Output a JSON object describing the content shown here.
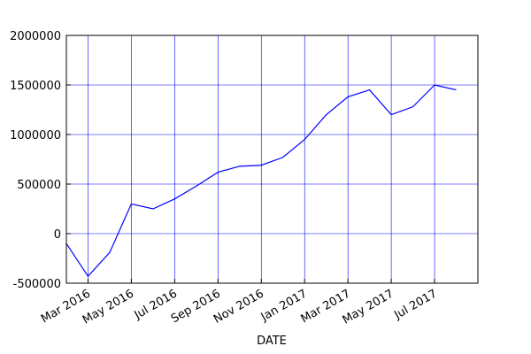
{
  "chart_data": {
    "type": "line",
    "x_label": "DATE",
    "x": [
      "2016-02",
      "2016-03",
      "2016-04",
      "2016-05",
      "2016-06",
      "2016-07",
      "2016-08",
      "2016-09",
      "2016-10",
      "2016-11",
      "2016-12",
      "2017-01",
      "2017-02",
      "2017-03",
      "2017-04",
      "2017-05",
      "2017-06",
      "2017-07",
      "2017-08"
    ],
    "series": [
      {
        "color": "#0000ff",
        "values": [
          -100000,
          -430000,
          -190000,
          300000,
          250000,
          350000,
          480000,
          620000,
          680000,
          690000,
          770000,
          950000,
          1200000,
          1380000,
          1450000,
          1200000,
          1280000,
          1500000,
          1450000
        ]
      }
    ],
    "xlim": [
      "2016-02",
      "2017-09"
    ],
    "xticks": [
      {
        "value": "2016-03",
        "label": "Mar 2016"
      },
      {
        "value": "2016-05",
        "label": "May 2016"
      },
      {
        "value": "2016-07",
        "label": "Jul 2016"
      },
      {
        "value": "2016-09",
        "label": "Sep 2016"
      },
      {
        "value": "2016-11",
        "label": "Nov 2016"
      },
      {
        "value": "2017-01",
        "label": "Jan 2017"
      },
      {
        "value": "2017-03",
        "label": "Mar 2017"
      },
      {
        "value": "2017-05",
        "label": "May 2017"
      },
      {
        "value": "2017-07",
        "label": "Jul 2017"
      }
    ],
    "ylim": [
      -500000,
      2000000
    ],
    "yticks": [
      -500000,
      0,
      500000,
      1000000,
      1500000,
      2000000
    ],
    "grid": true,
    "grid_color": "#0000ff"
  }
}
